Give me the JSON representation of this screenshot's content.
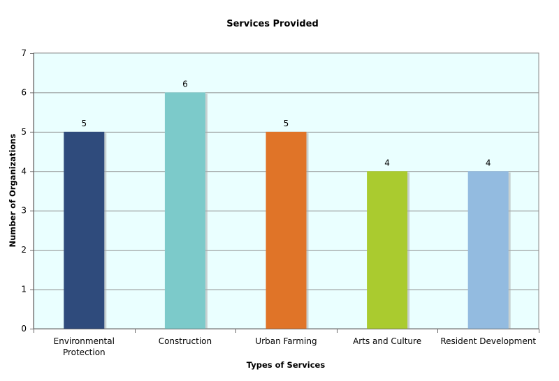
{
  "chart_data": {
    "type": "bar",
    "title": "Services Provided",
    "xlabel": "Types of Services",
    "ylabel": "Number of Organizations",
    "categories": [
      [
        "Environmental",
        "Protection"
      ],
      [
        "Construction"
      ],
      [
        "Urban Farming"
      ],
      [
        "Arts and Culture"
      ],
      [
        "Resident Development"
      ]
    ],
    "values": [
      5,
      6,
      5,
      4,
      4
    ],
    "colors": [
      "#2f4b7c",
      "#7ccaca",
      "#e07428",
      "#aacb2f",
      "#93bbe0"
    ],
    "ylim": [
      0,
      7
    ],
    "yticks": [
      0,
      1,
      2,
      3,
      4,
      5,
      6,
      7
    ],
    "grid": true,
    "legend": "none",
    "plot_background": "#eaffff"
  }
}
